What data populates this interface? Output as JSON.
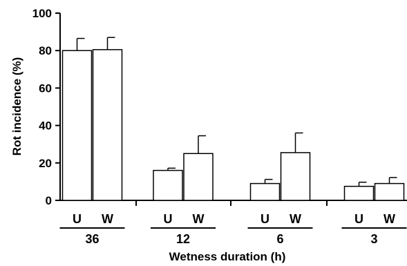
{
  "chart_data": {
    "type": "bar",
    "title": "",
    "xlabel": "Wetness duration (h)",
    "ylabel": "Rot incidence (%)",
    "ylim": [
      0,
      100
    ],
    "yticks": [
      0,
      20,
      40,
      60,
      80,
      100
    ],
    "grid": false,
    "groups": [
      {
        "label": "36",
        "bars": [
          {
            "label": "U",
            "value": 80,
            "error": 6.5
          },
          {
            "label": "W",
            "value": 80.5,
            "error": 6.5
          }
        ]
      },
      {
        "label": "12",
        "bars": [
          {
            "label": "U",
            "value": 16,
            "error": 1.2
          },
          {
            "label": "W",
            "value": 25,
            "error": 9.5
          }
        ]
      },
      {
        "label": "6",
        "bars": [
          {
            "label": "U",
            "value": 9,
            "error": 2.2
          },
          {
            "label": "W",
            "value": 25.5,
            "error": 10.5
          }
        ]
      },
      {
        "label": "3",
        "bars": [
          {
            "label": "U",
            "value": 7.5,
            "error": 2.2
          },
          {
            "label": "W",
            "value": 9,
            "error": 3.2
          }
        ]
      }
    ],
    "colors": {
      "bar_fill": "#ffffff",
      "stroke": "#000000"
    }
  }
}
